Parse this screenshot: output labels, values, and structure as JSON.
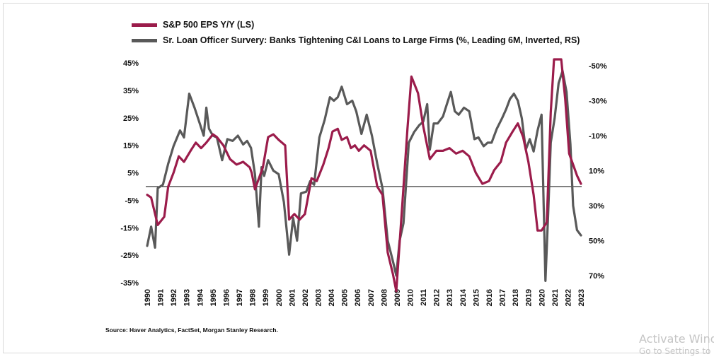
{
  "legend": {
    "eps_label": "S&P 500 EPS Y/Y (LS)",
    "loan_label": "Sr. Loan Officer Survery: Banks Tightening C&I Loans to Large Firms (%, Leading 6M, Inverted, RS)"
  },
  "source": "Source: Haver Analytics, FactSet, Morgan Stanley Research.",
  "watermark": {
    "line1": "Activate Windows",
    "line2": "Go to Settings to activate Windows."
  },
  "colors": {
    "eps": "#9b1c4b",
    "loan": "#595959",
    "zero_line": "#000000"
  },
  "chart_data": {
    "type": "line",
    "title": "",
    "x_labels": [
      "1990",
      "1991",
      "1992",
      "1993",
      "1994",
      "1995",
      "1996",
      "1997",
      "1998",
      "1999",
      "2000",
      "2001",
      "2002",
      "2003",
      "2004",
      "2005",
      "2006",
      "2007",
      "2008",
      "2009",
      "2010",
      "2011",
      "2012",
      "2013",
      "2014",
      "2015",
      "2016",
      "2017",
      "2018",
      "2019",
      "2020",
      "2021",
      "2022",
      "2023"
    ],
    "xlim": [
      1990,
      2023
    ],
    "left_axis": {
      "ticks": [
        "45%",
        "35%",
        "25%",
        "15%",
        "5%",
        "-5%",
        "-15%",
        "-25%",
        "-35%"
      ],
      "tick_values": [
        45,
        35,
        25,
        15,
        5,
        -5,
        -15,
        -25,
        -35
      ],
      "ylim": [
        -37,
        45
      ]
    },
    "right_axis": {
      "inverted": true,
      "ticks": [
        "-50%",
        "-30%",
        "-10%",
        "10%",
        "30%",
        "50%",
        "70%"
      ],
      "tick_values": [
        -50,
        -30,
        -10,
        10,
        30,
        50,
        70
      ]
    },
    "reference_line": 0,
    "series": [
      {
        "name": "S&P 500 EPS Y/Y (LS)",
        "axis": "left",
        "x": [
          1990,
          1990.3,
          1990.8,
          1991.3,
          1991.6,
          1992,
          1992.4,
          1992.8,
          1993.3,
          1993.7,
          1994.1,
          1994.5,
          1995,
          1995.3,
          1995.8,
          1996.3,
          1996.8,
          1997.3,
          1997.8,
          1997.95,
          1998.2,
          1998.5,
          1998.8,
          1999.2,
          1999.6,
          2000,
          2000.5,
          2000.8,
          2001.2,
          2001.6,
          2002,
          2002.5,
          2002.9,
          2003.4,
          2003.8,
          2004.1,
          2004.5,
          2004.8,
          2005.2,
          2005.5,
          2005.8,
          2006.1,
          2006.5,
          2007,
          2007.5,
          2007.9,
          2008.3,
          2008.7,
          2008.95,
          2009.4,
          2009.8,
          2010.1,
          2010.6,
          2011,
          2011.5,
          2012,
          2012.5,
          2013,
          2013.5,
          2014,
          2014.5,
          2015,
          2015.5,
          2016,
          2016.4,
          2016.9,
          2017.3,
          2017.8,
          2018.2,
          2018.6,
          2019,
          2019.4,
          2019.7,
          2020,
          2020.4,
          2020.7,
          2020.95,
          2021.2,
          2021.5,
          2021.8,
          2022.1,
          2022.4,
          2022.7,
          2023
        ],
        "values": [
          -3,
          -4,
          -14,
          -11,
          0,
          5,
          11,
          9,
          13,
          16,
          14,
          16,
          19,
          18,
          15,
          10,
          8,
          9,
          7,
          5,
          -1,
          3,
          7,
          18,
          19,
          17,
          15,
          -12,
          -10,
          -12,
          -10,
          3,
          2,
          8,
          14,
          20,
          21,
          17,
          18,
          14,
          15,
          13,
          15,
          13,
          0,
          -3,
          -24,
          -32,
          -40,
          -7,
          21,
          40,
          34,
          22,
          10,
          13,
          13,
          14,
          12,
          13,
          11,
          5,
          1,
          2,
          6,
          9,
          16,
          20,
          23,
          18,
          9,
          -3,
          -16,
          -16,
          -13,
          27,
          52,
          53,
          50,
          32,
          12,
          8,
          4,
          1
        ]
      },
      {
        "name": "Sr. Loan Officer Survery: Banks Tightening C&I Loans to Large Firms (%, Leading 6M, Inverted, RS)",
        "axis": "right",
        "x": [
          1990,
          1990.3,
          1990.6,
          1990.8,
          1991.2,
          1991.6,
          1992,
          1992.5,
          1992.8,
          1993.2,
          1993.6,
          1994,
          1994.3,
          1994.5,
          1994.7,
          1995,
          1995.3,
          1995.7,
          1996.1,
          1996.5,
          1996.9,
          1997.3,
          1997.6,
          1997.9,
          1998.2,
          1998.5,
          1998.7,
          1998.9,
          1999.2,
          1999.6,
          2000,
          2000.4,
          2000.8,
          2001.1,
          2001.4,
          2001.7,
          2002.1,
          2002.4,
          2002.7,
          2003.1,
          2003.5,
          2003.9,
          2004.2,
          2004.5,
          2004.8,
          2005.2,
          2005.6,
          2005.9,
          2006.3,
          2006.7,
          2007.1,
          2007.5,
          2007.9,
          2008.3,
          2008.7,
          2008.95,
          2009.2,
          2009.5,
          2009.9,
          2010.3,
          2010.7,
          2011,
          2011.3,
          2011.5,
          2011.8,
          2012.1,
          2012.5,
          2012.8,
          2013.1,
          2013.4,
          2013.7,
          2014.1,
          2014.5,
          2014.9,
          2015.2,
          2015.6,
          2015.9,
          2016.2,
          2016.6,
          2017,
          2017.3,
          2017.6,
          2017.9,
          2018.2,
          2018.5,
          2018.8,
          2019.1,
          2019.4,
          2019.7,
          2020,
          2020.3,
          2020.5,
          2020.7,
          2021,
          2021.3,
          2021.6,
          2021.9,
          2022.2,
          2022.4,
          2022.7,
          2023
        ],
        "values": [
          53,
          42,
          54,
          20,
          18,
          6,
          -4,
          -13,
          -9,
          -34,
          -26,
          -17,
          -10,
          -26,
          -14,
          -10,
          -9,
          4,
          -8,
          -7,
          -10,
          -5,
          -7,
          -3,
          12,
          42,
          8,
          13,
          4,
          10,
          12,
          28,
          58,
          37,
          50,
          23,
          22,
          16,
          18,
          -9,
          -19,
          -32,
          -30,
          -32,
          -38,
          -28,
          -30,
          -24,
          -11,
          -22,
          -10,
          6,
          20,
          50,
          62,
          70,
          50,
          40,
          -6,
          -12,
          -16,
          -18,
          -28,
          -2,
          -17,
          -17,
          -21,
          -28,
          -35,
          -24,
          -22,
          -26,
          -24,
          -8,
          -9,
          -4,
          -6,
          -6,
          -14,
          -20,
          -25,
          -31,
          -34,
          -30,
          -20,
          -2,
          -8,
          -1,
          -13,
          -22,
          73,
          35,
          -6,
          -20,
          -40,
          -47,
          -35,
          -5,
          30,
          44,
          47
        ]
      }
    ]
  }
}
